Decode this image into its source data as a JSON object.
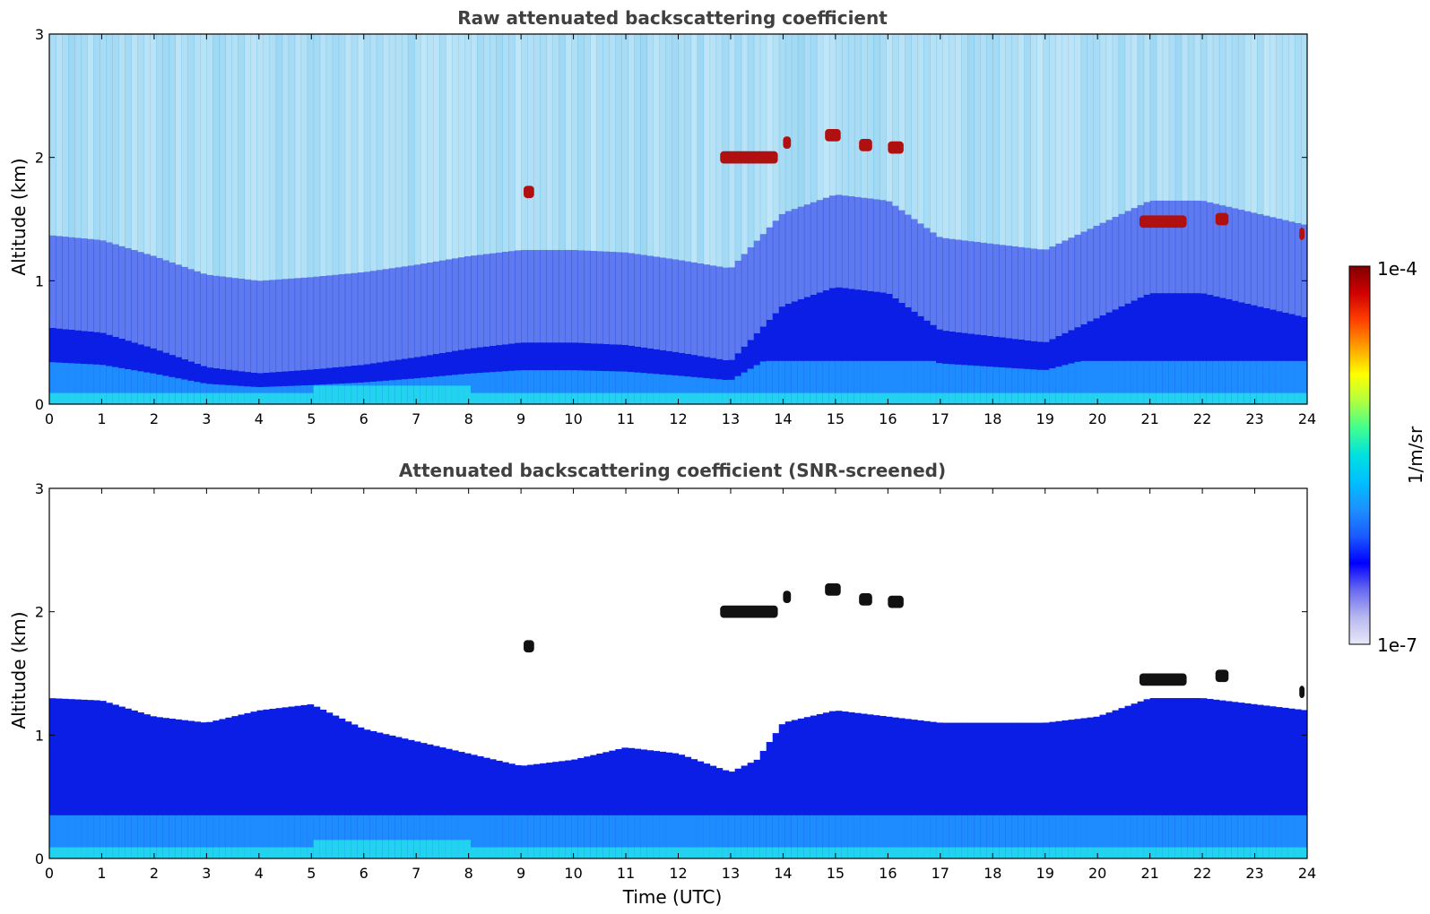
{
  "figure": {
    "colorbar": {
      "max_label": "1e-4",
      "min_label": "1e-7",
      "unit_label": "1/m/sr",
      "scale": "log",
      "range": [
        1e-07,
        0.0001
      ],
      "colors": [
        "#e8e8f8",
        "#b8b8f0",
        "#6a6af0",
        "#0000ff",
        "#1a5aff",
        "#1e90ff",
        "#00bfff",
        "#00e0e0",
        "#40ff90",
        "#b0ff40",
        "#ffff00",
        "#ffa000",
        "#ff4000",
        "#d00000",
        "#800000"
      ]
    }
  },
  "chart_data": [
    {
      "type": "heatmap",
      "title": "Raw attenuated backscattering coefficient",
      "xlabel": "",
      "ylabel": "Altitude (km)",
      "xlim": [
        0,
        24
      ],
      "ylim": [
        0,
        3
      ],
      "xticks": [
        "0",
        "1",
        "2",
        "3",
        "4",
        "5",
        "6",
        "7",
        "8",
        "9",
        "10",
        "11",
        "12",
        "13",
        "14",
        "15",
        "16",
        "17",
        "18",
        "19",
        "20",
        "21",
        "22",
        "23",
        "24"
      ],
      "yticks": [
        "0",
        "1",
        "2",
        "3"
      ],
      "colorbar_label": "1/m/sr",
      "features": {
        "boundary_layer_top_km": [
          [
            0,
            0.62
          ],
          [
            1,
            0.58
          ],
          [
            2,
            0.45
          ],
          [
            3,
            0.3
          ],
          [
            4,
            0.25
          ],
          [
            5,
            0.28
          ],
          [
            6,
            0.32
          ],
          [
            7,
            0.38
          ],
          [
            8,
            0.45
          ],
          [
            9,
            0.5
          ],
          [
            10,
            0.5
          ],
          [
            11,
            0.48
          ],
          [
            12,
            0.42
          ],
          [
            13,
            0.35
          ],
          [
            14,
            0.8
          ],
          [
            15,
            0.95
          ],
          [
            16,
            0.9
          ],
          [
            17,
            0.6
          ],
          [
            18,
            0.55
          ],
          [
            19,
            0.5
          ],
          [
            20,
            0.7
          ],
          [
            21,
            0.9
          ],
          [
            22,
            0.9
          ],
          [
            23,
            0.8
          ],
          [
            24,
            0.7
          ]
        ],
        "cloud_patches": [
          {
            "t_start": 9.05,
            "t_end": 9.25,
            "alt_km": 1.72
          },
          {
            "t_start": 12.8,
            "t_end": 13.9,
            "alt_km": 2.0
          },
          {
            "t_start": 14.0,
            "t_end": 14.15,
            "alt_km": 2.12
          },
          {
            "t_start": 14.8,
            "t_end": 15.1,
            "alt_km": 2.18
          },
          {
            "t_start": 15.45,
            "t_end": 15.7,
            "alt_km": 2.1
          },
          {
            "t_start": 16.0,
            "t_end": 16.3,
            "alt_km": 2.08
          },
          {
            "t_start": 20.8,
            "t_end": 21.7,
            "alt_km": 1.48
          },
          {
            "t_start": 22.25,
            "t_end": 22.5,
            "alt_km": 1.5
          },
          {
            "t_start": 23.85,
            "t_end": 23.95,
            "alt_km": 1.38
          }
        ]
      }
    },
    {
      "type": "heatmap",
      "title": "Attenuated backscattering coefficient (SNR-screened)",
      "xlabel": "Time (UTC)",
      "ylabel": "Altitude (km)",
      "xlim": [
        0,
        24
      ],
      "ylim": [
        0,
        3
      ],
      "xticks": [
        "0",
        "1",
        "2",
        "3",
        "4",
        "5",
        "6",
        "7",
        "8",
        "9",
        "10",
        "11",
        "12",
        "13",
        "14",
        "15",
        "16",
        "17",
        "18",
        "19",
        "20",
        "21",
        "22",
        "23",
        "24"
      ],
      "yticks": [
        "0",
        "1",
        "2",
        "3"
      ],
      "colorbar_label": "1/m/sr",
      "features": {
        "screened_signal_top_km": [
          [
            0,
            1.3
          ],
          [
            1,
            1.28
          ],
          [
            2,
            1.15
          ],
          [
            3,
            1.1
          ],
          [
            4,
            1.2
          ],
          [
            5,
            1.25
          ],
          [
            6,
            1.05
          ],
          [
            7,
            0.95
          ],
          [
            8,
            0.85
          ],
          [
            9,
            0.75
          ],
          [
            10,
            0.8
          ],
          [
            11,
            0.9
          ],
          [
            12,
            0.85
          ],
          [
            13,
            0.7
          ],
          [
            13.5,
            0.8
          ],
          [
            14,
            1.1
          ],
          [
            15,
            1.2
          ],
          [
            16,
            1.15
          ],
          [
            17,
            1.1
          ],
          [
            18,
            1.1
          ],
          [
            19,
            1.1
          ],
          [
            20,
            1.15
          ],
          [
            21,
            1.3
          ],
          [
            22,
            1.3
          ],
          [
            23,
            1.25
          ],
          [
            24,
            1.2
          ]
        ],
        "cloud_patches": [
          {
            "t_start": 9.05,
            "t_end": 9.25,
            "alt_km": 1.72
          },
          {
            "t_start": 12.8,
            "t_end": 13.9,
            "alt_km": 2.0
          },
          {
            "t_start": 14.0,
            "t_end": 14.15,
            "alt_km": 2.12
          },
          {
            "t_start": 14.8,
            "t_end": 15.1,
            "alt_km": 2.18
          },
          {
            "t_start": 15.45,
            "t_end": 15.7,
            "alt_km": 2.1
          },
          {
            "t_start": 16.0,
            "t_end": 16.3,
            "alt_km": 2.08
          },
          {
            "t_start": 20.8,
            "t_end": 21.7,
            "alt_km": 1.45
          },
          {
            "t_start": 22.25,
            "t_end": 22.5,
            "alt_km": 1.48
          },
          {
            "t_start": 23.85,
            "t_end": 23.95,
            "alt_km": 1.35
          }
        ]
      }
    }
  ]
}
